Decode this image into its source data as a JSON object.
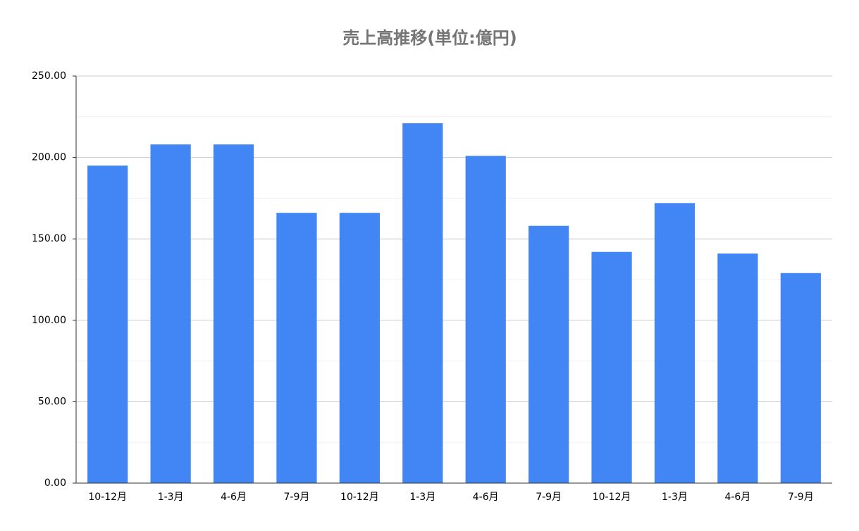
{
  "chart_data": {
    "type": "bar",
    "title": "売上高推移(単位:億円)",
    "categories": [
      "10-12月",
      "1-3月",
      "4-6月",
      "7-9月",
      "10-12月",
      "1-3月",
      "4-6月",
      "7-9月",
      "10-12月",
      "1-3月",
      "4-6月",
      "7-9月"
    ],
    "values": [
      195,
      208,
      208,
      166,
      166,
      221,
      201,
      158,
      142,
      172,
      141,
      129
    ],
    "color": "#4285f4",
    "ylim": [
      0,
      250
    ],
    "yticks": [
      {
        "value": 0,
        "label": "0.00"
      },
      {
        "value": 50,
        "label": "50.00"
      },
      {
        "value": 100,
        "label": "100.00"
      },
      {
        "value": 150,
        "label": "150.00"
      },
      {
        "value": 200,
        "label": "200.00"
      },
      {
        "value": 250,
        "label": "250.00"
      }
    ],
    "minor_yticks": [
      25,
      75,
      125,
      175,
      225
    ],
    "grid": true
  }
}
